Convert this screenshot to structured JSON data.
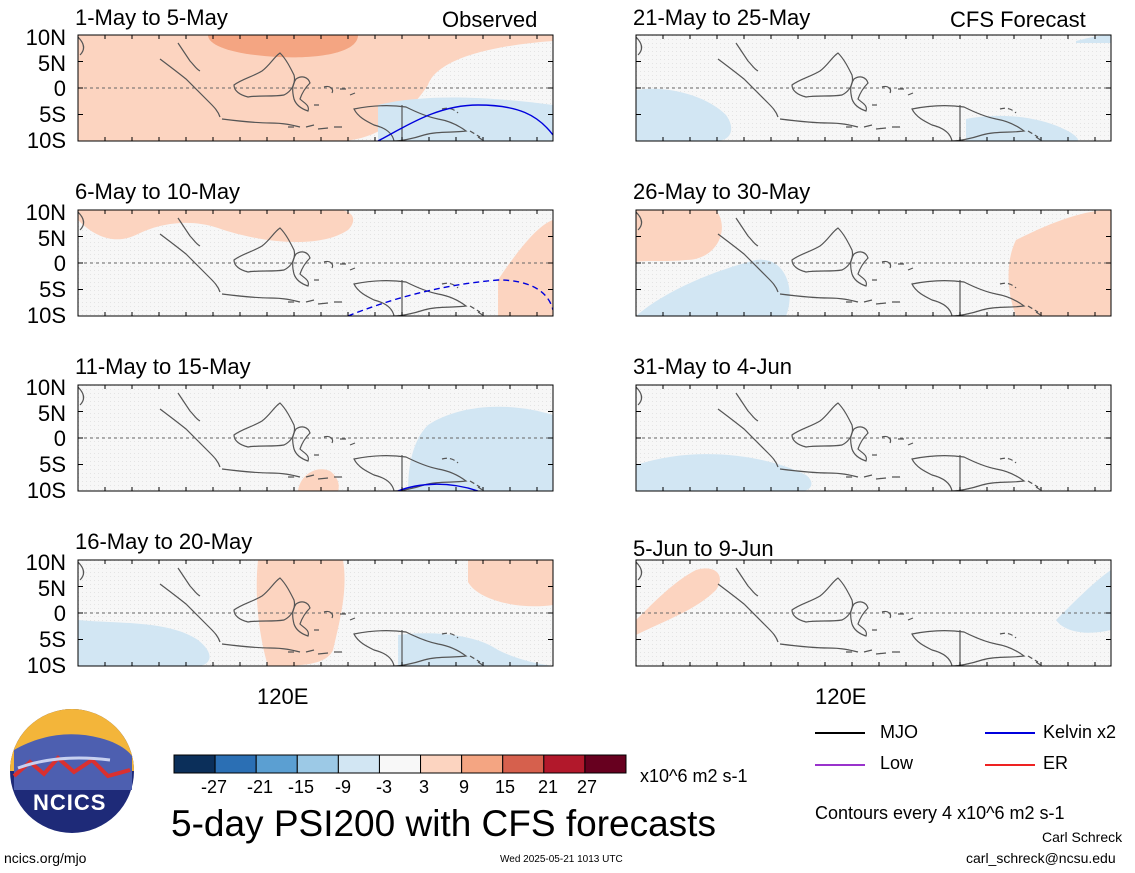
{
  "panels": [
    {
      "period": "1-May to 5-May",
      "tag": "Observed"
    },
    {
      "period": "6-May to 10-May",
      "tag": ""
    },
    {
      "period": "11-May to 15-May",
      "tag": ""
    },
    {
      "period": "16-May to 20-May",
      "tag": ""
    },
    {
      "period": "21-May to 25-May",
      "tag": "CFS Forecast"
    },
    {
      "period": "26-May to 30-May",
      "tag": ""
    },
    {
      "period": "31-May to 4-Jun",
      "tag": ""
    },
    {
      "period": "5-Jun to 9-Jun",
      "tag": ""
    }
  ],
  "lat_labels": [
    "10N",
    "5N",
    "0",
    "5S",
    "10S"
  ],
  "lon_label": "120E",
  "colorbar": {
    "tick_labels": [
      "-27",
      "-21",
      "-15",
      "-9",
      "-3",
      "3",
      "9",
      "15",
      "21",
      "27"
    ],
    "colors": [
      "#0b2f5a",
      "#2b6fb4",
      "#5b9fd2",
      "#9cc9e6",
      "#d2e6f3",
      "#f8f8f8",
      "#fcd4c0",
      "#f4a582",
      "#d6604d",
      "#b2182b",
      "#67001f"
    ],
    "units": "x10^6 m2 s-1"
  },
  "legend": [
    {
      "label": "MJO",
      "color": "#000000"
    },
    {
      "label": "Kelvin x2",
      "color": "#0000dd"
    },
    {
      "label": "Low",
      "color": "#9933cc"
    },
    {
      "label": "ER",
      "color": "#ee2222"
    }
  ],
  "main_title": "5-day PSI200 with CFS forecasts",
  "contour_note": "Contours every 4 x10^6 m2 s-1",
  "author": "Carl Schreck",
  "email": "carl_schreck@ncsu.edu",
  "website": "ncics.org/mjo",
  "timestamp": "Wed 2025-05-21 1013 UTC",
  "logo_text": "NCICS"
}
